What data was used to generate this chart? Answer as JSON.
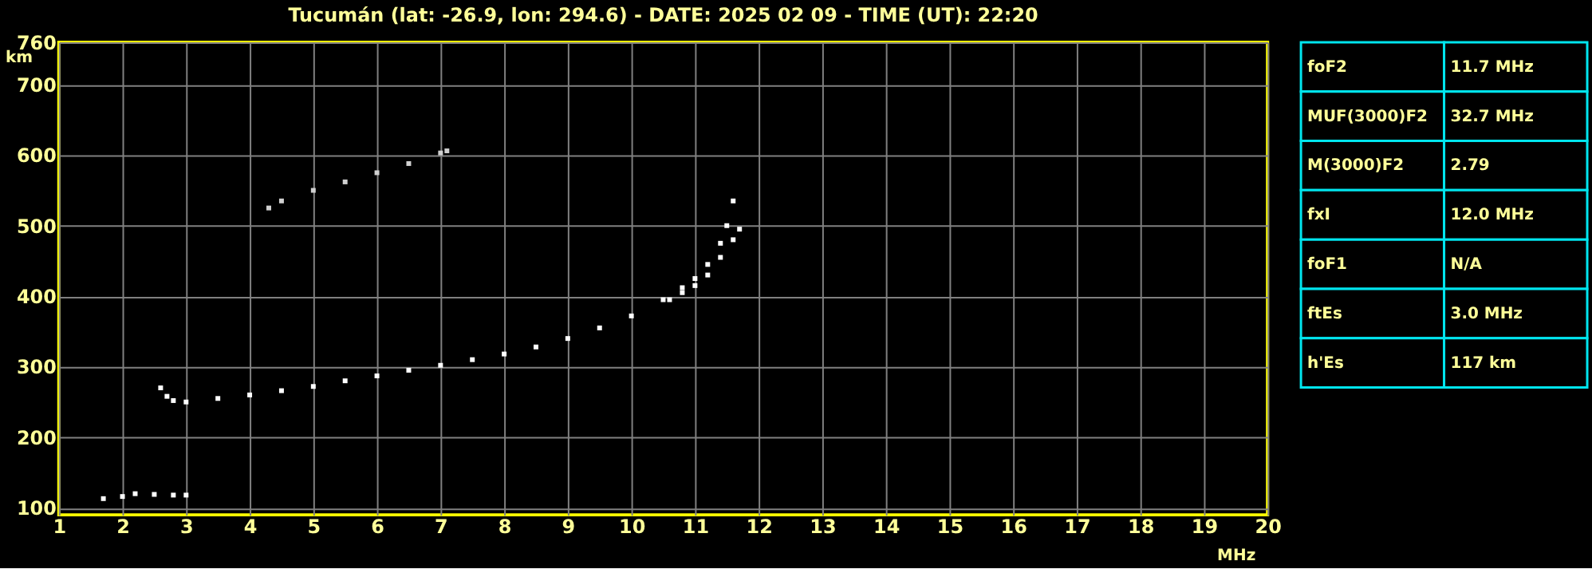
{
  "chart_data": [
    {
      "type": "scatter",
      "title": "Tucumán (lat: -26.9, lon: 294.6) - DATE: 2025 02 09 - TIME (UT): 22:20",
      "xlabel": "MHz",
      "ylabel": "km",
      "marker": "square",
      "grid": true,
      "xlim": [
        1,
        20
      ],
      "ylim": [
        90,
        760
      ],
      "xticks": [
        1,
        2,
        3,
        4,
        5,
        6,
        7,
        8,
        9,
        10,
        11,
        12,
        13,
        14,
        15,
        16,
        17,
        18,
        19,
        20
      ],
      "yticks": [
        100,
        200,
        300,
        400,
        500,
        600,
        700,
        760
      ],
      "series": [
        {
          "color": "#ffffff",
          "x": [
            2.6,
            2.7,
            2.8,
            3.0,
            3.5,
            4.0,
            4.5,
            5.0,
            5.5,
            6.0,
            6.5,
            7.0,
            7.5,
            8.0,
            8.5,
            9.0,
            9.5,
            10.0,
            10.5,
            10.8,
            11.0,
            11.2,
            11.4,
            11.5,
            11.6
          ],
          "values": [
            270,
            258,
            252,
            250,
            255,
            260,
            266,
            272,
            280,
            287,
            295,
            302,
            310,
            318,
            328,
            340,
            355,
            372,
            395,
            412,
            425,
            445,
            475,
            500,
            535
          ]
        },
        {
          "color": "#ffffff",
          "x": [
            10.6,
            10.8,
            11.0,
            11.2,
            11.4,
            11.6,
            11.7
          ],
          "values": [
            395,
            405,
            415,
            430,
            455,
            480,
            495
          ]
        },
        {
          "color": "#ffffff",
          "x": [
            1.7,
            2.0,
            2.2,
            2.5,
            2.8,
            3.0
          ],
          "values": [
            113,
            116,
            120,
            119,
            118,
            118
          ]
        },
        {
          "color": "#d0d0d0",
          "x": [
            4.3,
            4.5,
            5.0,
            5.5,
            6.0,
            6.5,
            7.0,
            7.1
          ],
          "values": [
            525,
            535,
            550,
            562,
            575,
            588,
            603,
            606
          ]
        }
      ]
    },
    {
      "type": "other",
      "annotations": [
        "foF2",
        "11.7 MHz",
        "MUF(3000)F2",
        "32.7 MHz",
        "M(3000)F2",
        "2.79",
        "fxI",
        "12.0 MHz",
        "foF1",
        "N/A",
        "ftEs",
        "3.0 MHz",
        "h'Es",
        "117 km"
      ]
    }
  ]
}
